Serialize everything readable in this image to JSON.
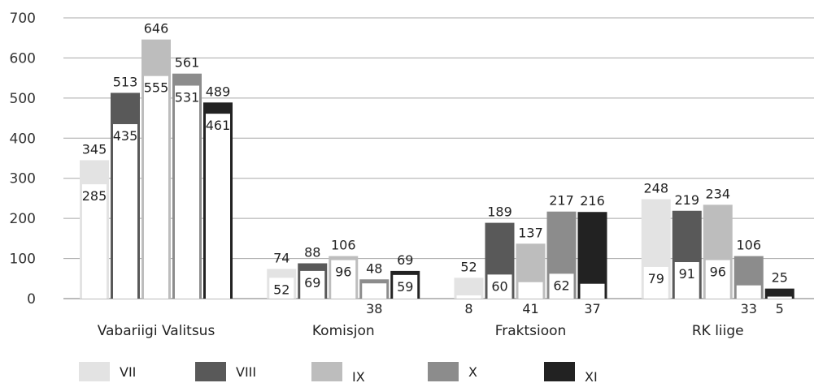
{
  "chart_data": {
    "type": "bar",
    "title": "",
    "xlabel": "",
    "ylabel": "",
    "ylim": [
      0,
      700
    ],
    "yticks": [
      0,
      100,
      200,
      300,
      400,
      500,
      600,
      700
    ],
    "grid": true,
    "legend_position": "bottom",
    "categories": [
      "Vabariigi Valitsus",
      "Komisjon",
      "Fraktsioon",
      "RK liige"
    ],
    "series": [
      {
        "name": "VII",
        "color": "#e3e3e3",
        "border": "#e3e3e3",
        "values": [
          345,
          74,
          52,
          248
        ],
        "inner_values": [
          285,
          52,
          8,
          79
        ]
      },
      {
        "name": "VIII",
        "color": "#595959",
        "border": "#595959",
        "values": [
          513,
          88,
          189,
          219
        ],
        "inner_values": [
          435,
          69,
          60,
          91
        ]
      },
      {
        "name": "IX",
        "color": "#bdbdbd",
        "border": "#bdbdbd",
        "values": [
          646,
          106,
          137,
          234
        ],
        "inner_values": [
          555,
          96,
          41,
          96
        ]
      },
      {
        "name": "X",
        "color": "#8c8c8c",
        "border": "#8c8c8c",
        "values": [
          561,
          48,
          217,
          106
        ],
        "inner_values": [
          531,
          38,
          62,
          33
        ]
      },
      {
        "name": "XI",
        "color": "#222222",
        "border": "#222222",
        "values": [
          489,
          69,
          216,
          25
        ],
        "inner_values": [
          461,
          59,
          37,
          5
        ]
      }
    ]
  }
}
